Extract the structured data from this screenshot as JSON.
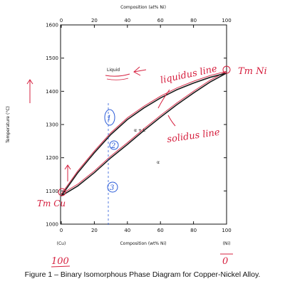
{
  "chart_data": {
    "type": "line",
    "title": "Composition (at% Ni)",
    "xlabel": "Composition (wt% Ni)",
    "ylabel": "Temperature (°C)",
    "xlim": [
      0,
      100
    ],
    "ylim": [
      1000,
      1600
    ],
    "x_ticks_bottom": [
      "0",
      "20",
      "40",
      "60",
      "80",
      "100"
    ],
    "x_ticks_top": [
      "0",
      "20",
      "40",
      "60",
      "80",
      "100"
    ],
    "y_ticks": [
      "1000",
      "1100",
      "1200",
      "1300",
      "1400",
      "1500",
      "1600"
    ],
    "end_labels": {
      "left": "(Cu)",
      "right": "(Ni)"
    },
    "series": [
      {
        "name": "Liquidus line",
        "x": [
          0,
          10,
          20,
          30,
          40,
          50,
          60,
          70,
          80,
          90,
          100
        ],
        "y": [
          1085,
          1155,
          1215,
          1270,
          1315,
          1350,
          1380,
          1405,
          1425,
          1442,
          1455
        ]
      },
      {
        "name": "Solidus line",
        "x": [
          0,
          10,
          20,
          30,
          40,
          50,
          60,
          70,
          80,
          90,
          100
        ],
        "y": [
          1085,
          1115,
          1155,
          1200,
          1240,
          1282,
          1322,
          1360,
          1395,
          1428,
          1455
        ]
      }
    ],
    "regions": {
      "liquid": "Liquid",
      "two_phase": "α + L",
      "solid": "α"
    },
    "annotations": {
      "liquidus": "liquidus line",
      "solidus": "solidus line",
      "tm_ni": "Tm Ni",
      "tm_cu": "Tm Cu",
      "points": [
        "1",
        "2",
        "3"
      ],
      "below_left": "100",
      "below_right": "0"
    },
    "grid": false,
    "colors": {
      "curve": "#1a1a1a",
      "annotation": "#d6203f",
      "marker": "#2a5bd8"
    }
  },
  "caption": "Figure 1 – Binary Isomorphous Phase Diagram for Copper-Nickel Alloy."
}
